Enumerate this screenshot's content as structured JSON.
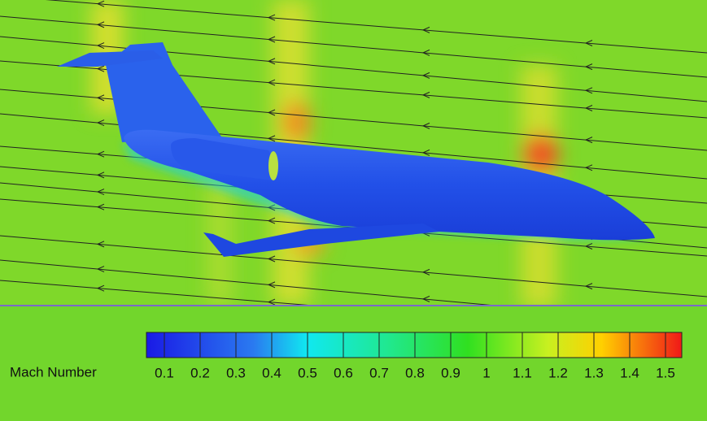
{
  "legend": {
    "title": "Mach Number",
    "ticks": [
      0.1,
      0.2,
      0.3,
      0.4,
      0.5,
      0.6,
      0.7,
      0.8,
      0.9,
      1,
      1.1,
      1.2,
      1.3,
      1.4,
      1.5
    ]
  }
}
